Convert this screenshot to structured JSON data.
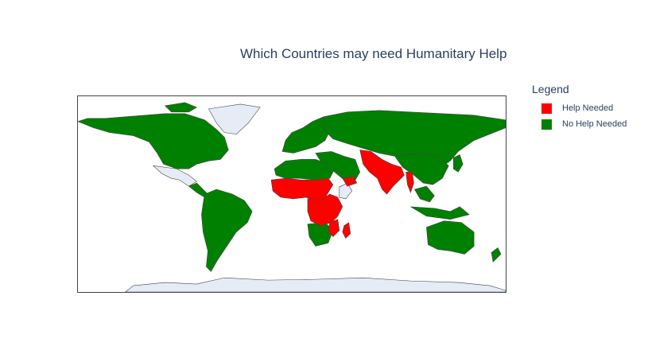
{
  "title": "Which Countries may need Humanitary Help",
  "legend": {
    "title": "Legend",
    "items": [
      {
        "label": "Help Needed",
        "color": "#ff0000"
      },
      {
        "label": "No Help Needed",
        "color": "#008000"
      }
    ]
  },
  "colors": {
    "help_needed": "#ff0000",
    "no_help_needed": "#008000",
    "no_data": "#e5ecf6",
    "borders": "#444444"
  },
  "map": {
    "projection": "equirectangular",
    "regions_help_needed": [
      "West Africa",
      "Central Africa",
      "East Africa",
      "Madagascar",
      "Mozambique",
      "Pakistan",
      "India",
      "Nepal",
      "Bangladesh",
      "Myanmar",
      "Afghanistan",
      "Yemen"
    ],
    "regions_no_data": [
      "Greenland",
      "Antarctica",
      "Mexico",
      "Somalia"
    ]
  }
}
